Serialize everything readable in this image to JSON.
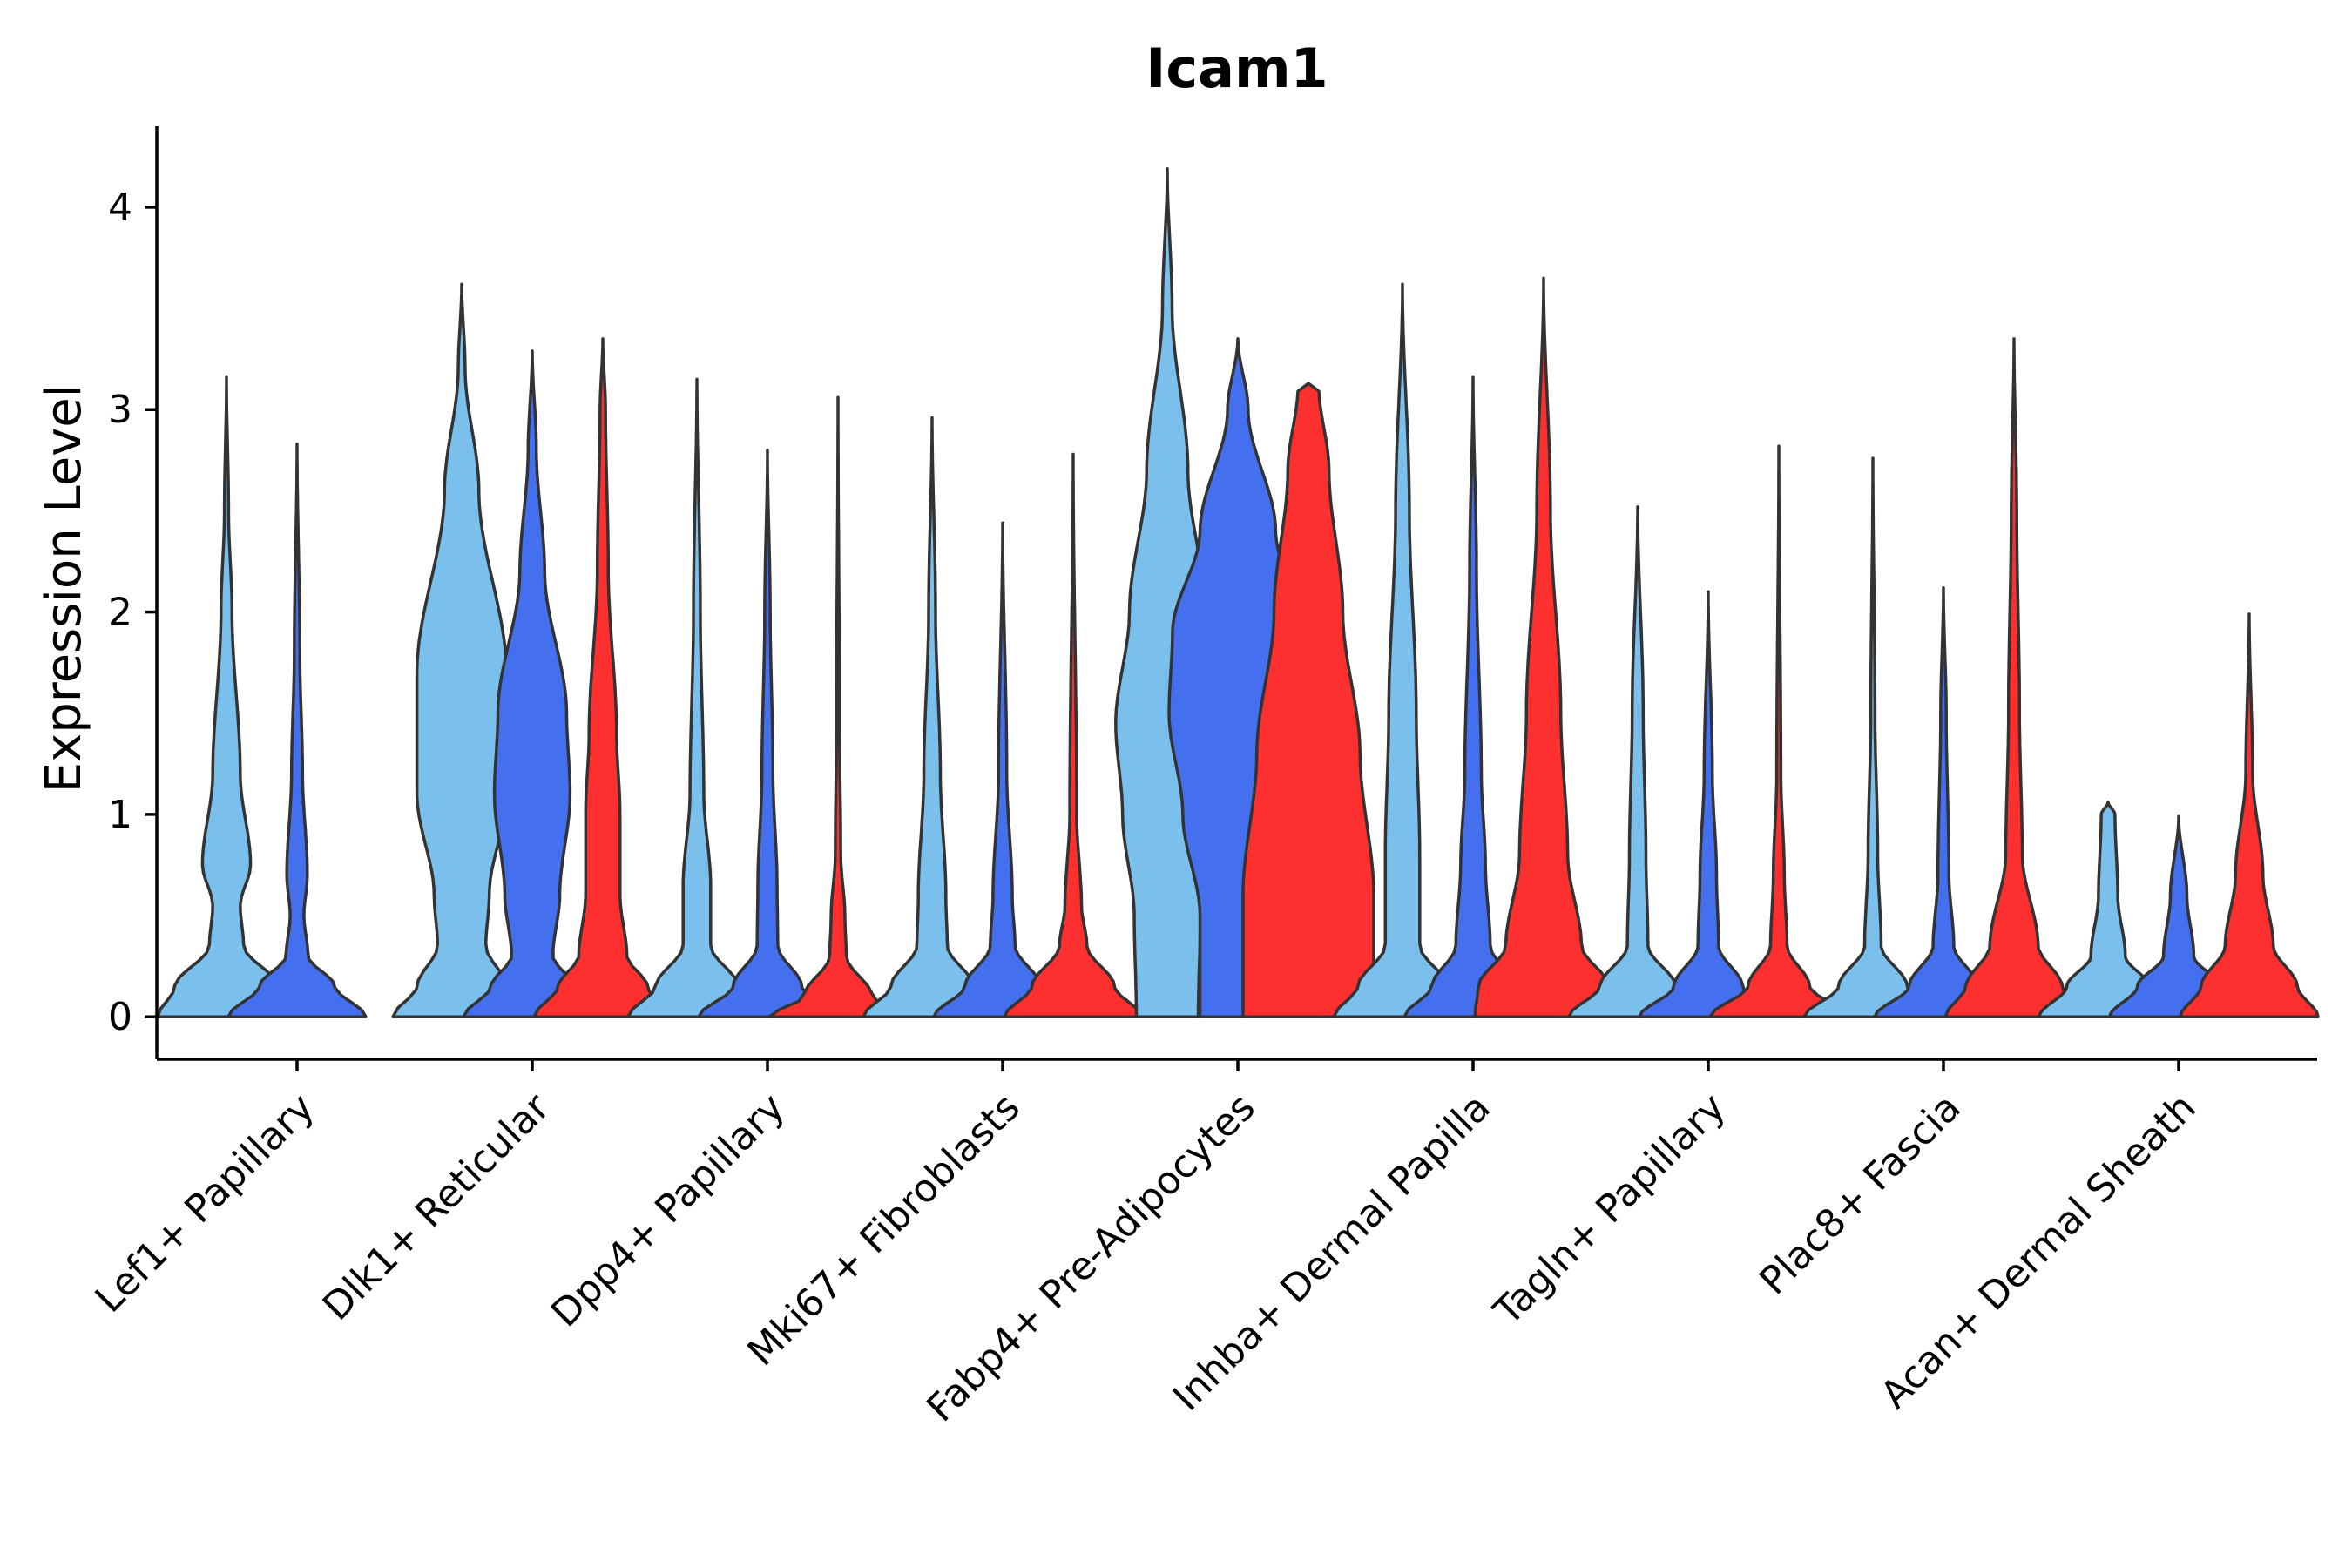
{
  "chart_data": {
    "type": "violin",
    "title": "Icam1",
    "xlabel": "",
    "ylabel": "Expression Level",
    "ylim": [
      -0.21,
      4.4
    ],
    "yticks": [
      0,
      1,
      2,
      3,
      4
    ],
    "legend": "none",
    "categories": [
      "Lef1+ Papillary",
      "Dlk1+ Reticular",
      "Dpp4+ Papillary",
      "Mki67+ Fibroblasts",
      "Fabp4+ Pre-Adipocytes",
      "Inhba+ Dermal Papilla",
      "Tagln+ Papillary",
      "Plac8+ Fascia",
      "Acan+ Dermal Sheath"
    ],
    "series_colors": [
      "#7bbfec",
      "#4470ef",
      "#fe2f2f"
    ],
    "violins": [
      {
        "category": 0,
        "series": 0,
        "max": 3.16,
        "profile": [
          [
            0,
            1.0
          ],
          [
            0.15,
            0.75
          ],
          [
            0.35,
            0.25
          ],
          [
            0.55,
            0.2
          ],
          [
            0.75,
            0.35
          ],
          [
            1.2,
            0.2
          ],
          [
            2.0,
            0.08
          ],
          [
            2.5,
            0.03
          ],
          [
            3.16,
            0.0
          ]
        ]
      },
      {
        "category": 0,
        "series": 1,
        "max": 2.83,
        "profile": [
          [
            0,
            1.0
          ],
          [
            0.15,
            0.55
          ],
          [
            0.3,
            0.16
          ],
          [
            0.5,
            0.1
          ],
          [
            0.7,
            0.15
          ],
          [
            1.2,
            0.08
          ],
          [
            1.8,
            0.04
          ],
          [
            2.83,
            0.0
          ]
        ]
      },
      {
        "category": 1,
        "series": 0,
        "max": 3.62,
        "profile": [
          [
            0,
            1.0
          ],
          [
            0.15,
            0.65
          ],
          [
            0.35,
            0.35
          ],
          [
            0.6,
            0.4
          ],
          [
            1.1,
            0.65
          ],
          [
            1.7,
            0.65
          ],
          [
            2.6,
            0.25
          ],
          [
            3.2,
            0.05
          ],
          [
            3.62,
            0.0
          ]
        ]
      },
      {
        "category": 1,
        "series": 1,
        "max": 3.29,
        "profile": [
          [
            0,
            1.0
          ],
          [
            0.15,
            0.6
          ],
          [
            0.3,
            0.3
          ],
          [
            0.6,
            0.4
          ],
          [
            1.1,
            0.55
          ],
          [
            1.5,
            0.5
          ],
          [
            2.2,
            0.18
          ],
          [
            2.8,
            0.06
          ],
          [
            3.29,
            0.0
          ]
        ]
      },
      {
        "category": 1,
        "series": 2,
        "max": 3.35,
        "profile": [
          [
            0,
            1.0
          ],
          [
            0.15,
            0.65
          ],
          [
            0.3,
            0.35
          ],
          [
            0.6,
            0.25
          ],
          [
            1.0,
            0.25
          ],
          [
            1.4,
            0.2
          ],
          [
            2.2,
            0.08
          ],
          [
            3.0,
            0.04
          ],
          [
            3.35,
            0.0
          ]
        ]
      },
      {
        "category": 2,
        "series": 0,
        "max": 3.15,
        "profile": [
          [
            0,
            1.0
          ],
          [
            0.15,
            0.6
          ],
          [
            0.35,
            0.2
          ],
          [
            0.65,
            0.2
          ],
          [
            1.1,
            0.1
          ],
          [
            2.0,
            0.05
          ],
          [
            3.15,
            0.0
          ]
        ]
      },
      {
        "category": 2,
        "series": 1,
        "max": 2.8,
        "profile": [
          [
            0,
            1.0
          ],
          [
            0.15,
            0.5
          ],
          [
            0.35,
            0.15
          ],
          [
            0.65,
            0.14
          ],
          [
            1.2,
            0.08
          ],
          [
            2.0,
            0.04
          ],
          [
            2.8,
            0.0
          ]
        ]
      },
      {
        "category": 2,
        "series": 2,
        "max": 3.06,
        "profile": [
          [
            0,
            1.0
          ],
          [
            0.1,
            0.5
          ],
          [
            0.3,
            0.12
          ],
          [
            0.5,
            0.1
          ],
          [
            0.8,
            0.04
          ],
          [
            1.5,
            0.02
          ],
          [
            3.06,
            0.0
          ]
        ]
      },
      {
        "category": 3,
        "series": 0,
        "max": 2.96,
        "profile": [
          [
            0,
            1.0
          ],
          [
            0.15,
            0.6
          ],
          [
            0.35,
            0.22
          ],
          [
            0.6,
            0.2
          ],
          [
            1.2,
            0.12
          ],
          [
            2.0,
            0.05
          ],
          [
            2.96,
            0.0
          ]
        ]
      },
      {
        "category": 3,
        "series": 1,
        "max": 2.44,
        "profile": [
          [
            0,
            1.0
          ],
          [
            0.15,
            0.55
          ],
          [
            0.35,
            0.18
          ],
          [
            0.6,
            0.14
          ],
          [
            1.2,
            0.06
          ],
          [
            2.44,
            0.0
          ]
        ]
      },
      {
        "category": 3,
        "series": 2,
        "max": 2.78,
        "profile": [
          [
            0,
            1.0
          ],
          [
            0.15,
            0.6
          ],
          [
            0.35,
            0.2
          ],
          [
            0.55,
            0.12
          ],
          [
            1.0,
            0.05
          ],
          [
            2.78,
            0.0
          ]
        ]
      },
      {
        "category": 4,
        "series": 0,
        "max": 4.19,
        "profile": [
          [
            0,
            0.45
          ],
          [
            0.5,
            0.48
          ],
          [
            1.0,
            0.65
          ],
          [
            1.45,
            0.75
          ],
          [
            2.0,
            0.55
          ],
          [
            2.7,
            0.3
          ],
          [
            3.5,
            0.07
          ],
          [
            4.19,
            0.0
          ]
        ]
      },
      {
        "category": 4,
        "series": 1,
        "max": 3.35,
        "profile": [
          [
            0,
            0.55
          ],
          [
            0.5,
            0.55
          ],
          [
            1.0,
            0.8
          ],
          [
            1.5,
            1.0
          ],
          [
            1.9,
            0.95
          ],
          [
            2.4,
            0.55
          ],
          [
            3.0,
            0.15
          ],
          [
            3.35,
            0.0
          ]
        ]
      },
      {
        "category": 4,
        "series": 2,
        "max": 3.13,
        "profile": [
          [
            0,
            0.95
          ],
          [
            0.6,
            0.95
          ],
          [
            1.3,
            0.75
          ],
          [
            2.0,
            0.5
          ],
          [
            2.7,
            0.3
          ],
          [
            3.12,
            0.15
          ],
          [
            3.13,
            0.0
          ]
        ]
      },
      {
        "category": 5,
        "series": 0,
        "max": 3.62,
        "profile": [
          [
            0,
            1.0
          ],
          [
            0.15,
            0.65
          ],
          [
            0.35,
            0.25
          ],
          [
            0.8,
            0.25
          ],
          [
            1.5,
            0.2
          ],
          [
            2.5,
            0.1
          ],
          [
            3.62,
            0.0
          ]
        ]
      },
      {
        "category": 5,
        "series": 1,
        "max": 3.16,
        "profile": [
          [
            0,
            1.0
          ],
          [
            0.15,
            0.6
          ],
          [
            0.35,
            0.25
          ],
          [
            0.75,
            0.18
          ],
          [
            1.2,
            0.12
          ],
          [
            2.2,
            0.05
          ],
          [
            3.16,
            0.0
          ]
        ]
      },
      {
        "category": 5,
        "series": 2,
        "max": 3.65,
        "profile": [
          [
            0,
            1.0
          ],
          [
            0.15,
            0.95
          ],
          [
            0.35,
            0.55
          ],
          [
            0.8,
            0.35
          ],
          [
            1.5,
            0.25
          ],
          [
            2.5,
            0.1
          ],
          [
            3.65,
            0.0
          ]
        ]
      },
      {
        "category": 6,
        "series": 0,
        "max": 2.52,
        "profile": [
          [
            0,
            1.0
          ],
          [
            0.15,
            0.55
          ],
          [
            0.35,
            0.15
          ],
          [
            0.8,
            0.12
          ],
          [
            1.5,
            0.08
          ],
          [
            2.52,
            0.0
          ]
        ]
      },
      {
        "category": 6,
        "series": 1,
        "max": 2.1,
        "profile": [
          [
            0,
            1.0
          ],
          [
            0.15,
            0.5
          ],
          [
            0.35,
            0.15
          ],
          [
            0.7,
            0.12
          ],
          [
            1.2,
            0.06
          ],
          [
            2.1,
            0.0
          ]
        ]
      },
      {
        "category": 6,
        "series": 2,
        "max": 2.82,
        "profile": [
          [
            0,
            1.0
          ],
          [
            0.15,
            0.45
          ],
          [
            0.35,
            0.12
          ],
          [
            0.7,
            0.08
          ],
          [
            1.2,
            0.03
          ],
          [
            2.82,
            0.0
          ]
        ]
      },
      {
        "category": 7,
        "series": 0,
        "max": 2.76,
        "profile": [
          [
            0,
            1.0
          ],
          [
            0.15,
            0.5
          ],
          [
            0.35,
            0.12
          ],
          [
            0.8,
            0.07
          ],
          [
            1.5,
            0.03
          ],
          [
            2.76,
            0.0
          ]
        ]
      },
      {
        "category": 7,
        "series": 1,
        "max": 2.12,
        "profile": [
          [
            0,
            1.0
          ],
          [
            0.15,
            0.5
          ],
          [
            0.35,
            0.15
          ],
          [
            0.7,
            0.08
          ],
          [
            1.5,
            0.04
          ],
          [
            2.12,
            0.0
          ]
        ]
      },
      {
        "category": 7,
        "series": 2,
        "max": 3.35,
        "profile": [
          [
            0,
            1.0
          ],
          [
            0.15,
            0.7
          ],
          [
            0.35,
            0.35
          ],
          [
            0.8,
            0.12
          ],
          [
            1.5,
            0.08
          ],
          [
            2.5,
            0.04
          ],
          [
            3.35,
            0.0
          ]
        ]
      },
      {
        "category": 8,
        "series": 0,
        "max": 1.06,
        "profile": [
          [
            0,
            1.0
          ],
          [
            0.15,
            0.6
          ],
          [
            0.3,
            0.25
          ],
          [
            0.6,
            0.14
          ],
          [
            1.0,
            0.1
          ],
          [
            1.06,
            0.0
          ]
        ]
      },
      {
        "category": 8,
        "series": 1,
        "max": 0.99,
        "profile": [
          [
            0,
            1.0
          ],
          [
            0.15,
            0.6
          ],
          [
            0.3,
            0.22
          ],
          [
            0.6,
            0.12
          ],
          [
            0.99,
            0.0
          ]
        ]
      },
      {
        "category": 8,
        "series": 2,
        "max": 1.99,
        "profile": [
          [
            0,
            1.0
          ],
          [
            0.15,
            0.7
          ],
          [
            0.35,
            0.35
          ],
          [
            0.7,
            0.2
          ],
          [
            1.2,
            0.05
          ],
          [
            1.99,
            0.0
          ]
        ]
      }
    ]
  }
}
